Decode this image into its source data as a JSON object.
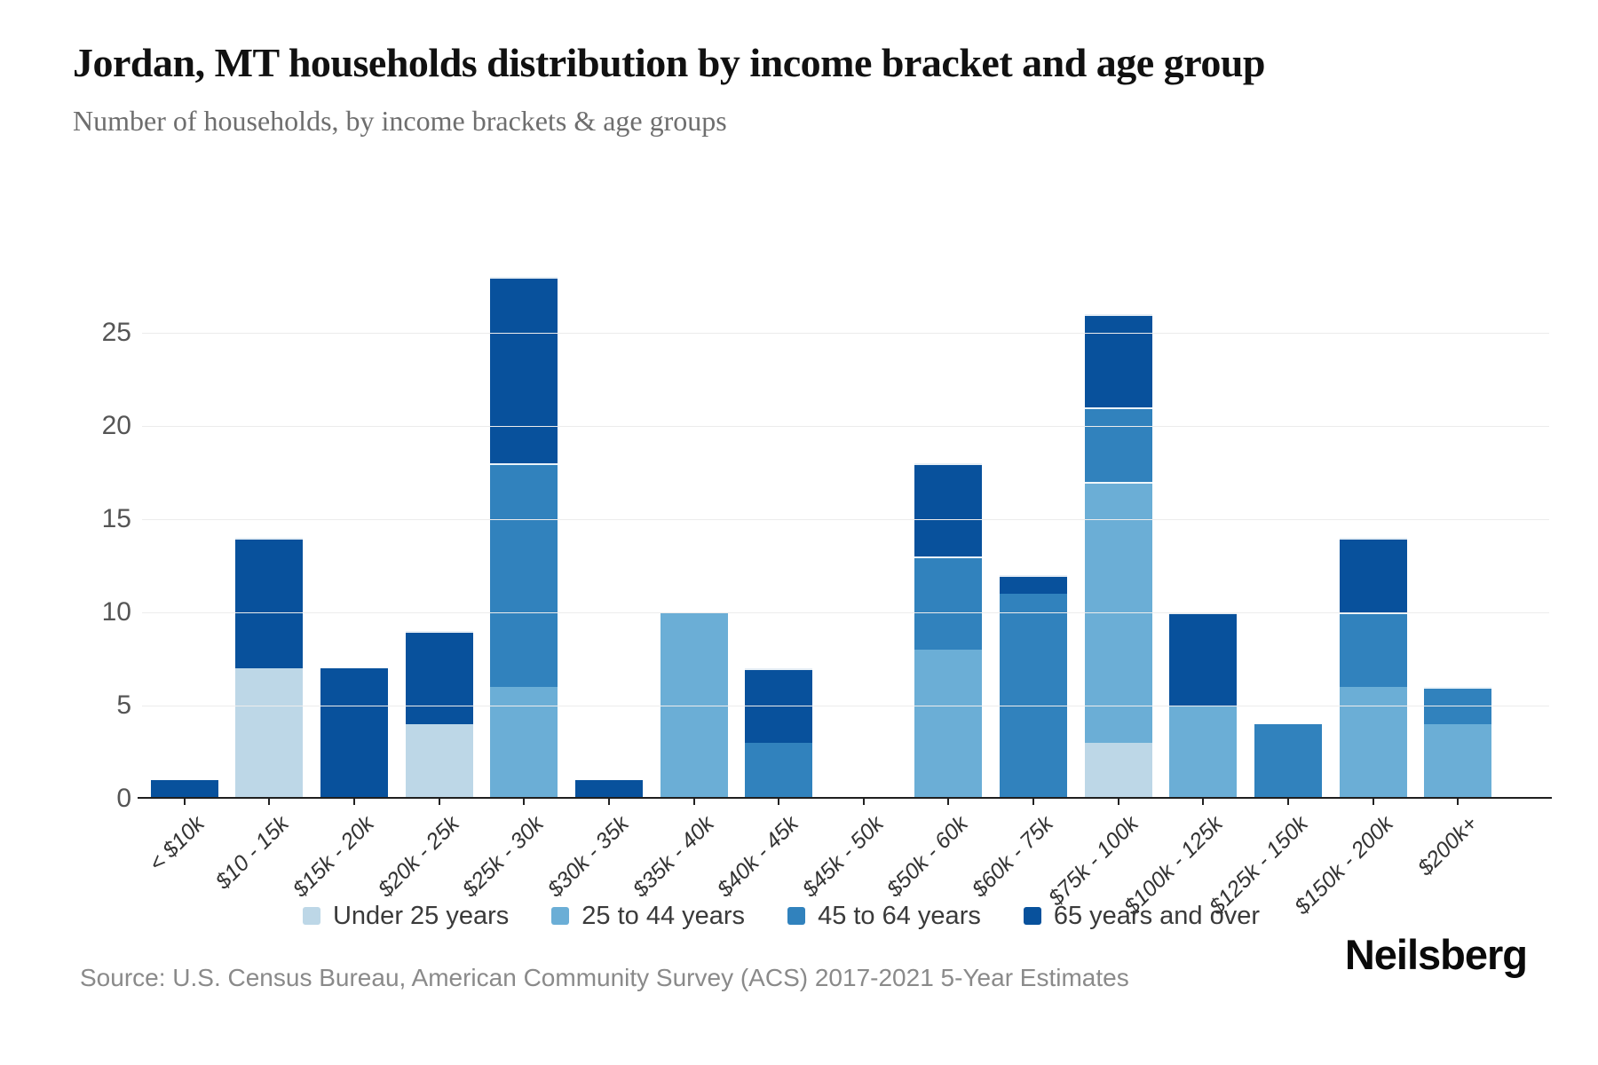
{
  "header": {
    "title": "Jordan, MT households distribution by income bracket and age group",
    "subtitle": "Number of households, by income brackets & age groups"
  },
  "footer": {
    "source": "Source: U.S. Census Bureau, American Community Survey (ACS) 2017-2021 5-Year Estimates",
    "logo": "Neilsberg"
  },
  "chart_data": {
    "type": "bar",
    "stacked": true,
    "title": "Jordan, MT households distribution by income bracket and age group",
    "subtitle": "Number of households, by income brackets & age groups",
    "xlabel": "",
    "ylabel": "",
    "ylim": [
      0,
      30
    ],
    "yticks": [
      0,
      5,
      10,
      15,
      20,
      25
    ],
    "grid": true,
    "legend_position": "bottom",
    "categories": [
      "< $10k",
      "$10 - 15k",
      "$15k - 20k",
      "$20k - 25k",
      "$25k - 30k",
      "$30k - 35k",
      "$35k - 40k",
      "$40k - 45k",
      "$45k - 50k",
      "$50k - 60k",
      "$60k - 75k",
      "$75k - 100k",
      "$100k - 125k",
      "$125k - 150k",
      "$150k - 200k",
      "$200k+"
    ],
    "series": [
      {
        "name": "Under 25 years",
        "color": "#bdd7e7",
        "values": [
          0,
          7,
          0,
          4,
          0,
          0,
          0,
          0,
          0,
          0,
          0,
          3,
          0,
          0,
          0,
          0
        ]
      },
      {
        "name": "25 to 44 years",
        "color": "#6baed6",
        "values": [
          0,
          0,
          0,
          0,
          6,
          0,
          10,
          0,
          0,
          8,
          0,
          14,
          5,
          0,
          6,
          4
        ]
      },
      {
        "name": "45 to 64 years",
        "color": "#3182bd",
        "values": [
          0,
          0,
          0,
          0,
          12,
          0,
          0,
          3,
          0,
          5,
          11,
          4,
          0,
          4,
          4,
          2
        ]
      },
      {
        "name": "65 years and over",
        "color": "#08519c",
        "values": [
          1,
          7,
          7,
          5,
          10,
          1,
          0,
          4,
          0,
          5,
          1,
          5,
          5,
          0,
          4,
          0
        ]
      }
    ],
    "totals": [
      1,
      14,
      7,
      9,
      28,
      1,
      10,
      7,
      0,
      18,
      12,
      26,
      10,
      4,
      14,
      6
    ]
  }
}
